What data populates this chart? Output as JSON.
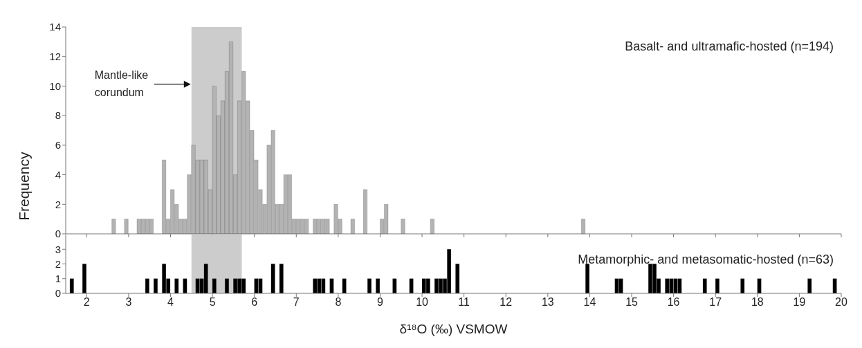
{
  "chart_data": [
    {
      "type": "histogram",
      "title": "Basalt- and ultramafic-hosted (n=194)",
      "ylabel": "Frequency",
      "color": "#b3b3b3",
      "bins": [
        2.6,
        2.7,
        2.8,
        2.9,
        3.0,
        3.1,
        3.2,
        3.3,
        3.4,
        3.5,
        3.6,
        3.7,
        3.8,
        3.9,
        4.0,
        4.1,
        4.2,
        4.3,
        4.4,
        4.5,
        4.6,
        4.7,
        4.8,
        4.9,
        5.0,
        5.1,
        5.2,
        5.3,
        5.4,
        5.5,
        5.6,
        5.7,
        5.8,
        5.9,
        6.0,
        6.1,
        6.2,
        6.3,
        6.4,
        6.5,
        6.6,
        6.7,
        6.8,
        6.9,
        7.0,
        7.1,
        7.2,
        7.3,
        7.4,
        7.5,
        7.6,
        7.7,
        7.8,
        7.9,
        8.0,
        8.1,
        8.2,
        8.3,
        8.4,
        8.5,
        8.6,
        8.7,
        8.8,
        8.9,
        9.0,
        9.1,
        9.2,
        9.3,
        9.4,
        9.5,
        9.6,
        9.7,
        9.8,
        9.9,
        10.0,
        10.1,
        10.2,
        10.3,
        10.4,
        10.5,
        10.6,
        10.7,
        10.8,
        10.9,
        11.0,
        11.1,
        11.2,
        11.3,
        11.4,
        11.5,
        11.6,
        11.7,
        11.8,
        11.9,
        12.0,
        12.1,
        12.2,
        12.3,
        12.4,
        12.5,
        12.6,
        12.7,
        12.8,
        12.9,
        13.0,
        13.1,
        13.2,
        13.3,
        13.4,
        13.5,
        13.6,
        13.7,
        13.8,
        13.9
      ],
      "values": [
        1,
        0,
        0,
        1,
        0,
        0,
        1,
        1,
        1,
        1,
        0,
        0,
        5,
        1,
        3,
        2,
        1,
        1,
        4,
        6,
        5,
        5,
        5,
        3,
        10,
        8,
        9,
        11,
        13,
        4,
        9,
        11,
        9,
        7,
        5,
        3,
        2,
        6,
        7,
        2,
        2,
        4,
        4,
        1,
        1,
        1,
        1,
        0,
        1,
        1,
        1,
        1,
        0,
        2,
        1,
        0,
        0,
        1,
        0,
        0,
        3,
        0,
        0,
        0,
        1,
        2,
        0,
        0,
        0,
        1,
        0,
        0,
        0,
        0,
        0,
        0,
        1,
        0,
        0,
        0,
        0,
        0,
        0,
        0,
        0,
        0,
        0,
        0,
        0,
        0,
        0,
        0,
        0,
        0,
        0,
        0,
        0,
        0,
        0,
        0,
        0,
        0,
        0,
        0,
        0,
        0,
        0,
        0,
        0,
        0,
        0,
        0,
        1
      ],
      "xlim": [
        1.5,
        20
      ],
      "xticks": [
        2,
        3,
        4,
        5,
        6,
        7,
        8,
        9,
        10,
        11,
        12,
        13,
        14,
        15,
        16,
        17,
        18,
        19,
        20
      ],
      "ylim": [
        0,
        14
      ],
      "yticks": [
        0,
        2,
        4,
        6,
        8,
        10,
        12,
        14
      ],
      "tick_labels": "y",
      "bands": [
        {
          "axis": "x",
          "from": 4.5,
          "to": 5.7,
          "label": "Mantle-like corundum",
          "color": "#cccccc"
        }
      ]
    },
    {
      "type": "histogram",
      "title": "Metamorphic- and metasomatic-hosted (n=63)",
      "xlabel": "δ¹⁸O (‰) VSMOW",
      "color": "#000000",
      "bins": [
        1.6,
        1.7,
        1.8,
        1.9,
        2.0,
        2.1,
        2.2,
        2.3,
        2.4,
        2.5,
        2.6,
        2.7,
        2.8,
        2.9,
        3.0,
        3.1,
        3.2,
        3.3,
        3.4,
        3.5,
        3.6,
        3.7,
        3.8,
        3.9,
        4.0,
        4.1,
        4.2,
        4.3,
        4.4,
        4.5,
        4.6,
        4.7,
        4.8,
        4.9,
        5.0,
        5.1,
        5.2,
        5.3,
        5.4,
        5.5,
        5.6,
        5.7,
        5.8,
        5.9,
        6.0,
        6.1,
        6.2,
        6.3,
        6.4,
        6.5,
        6.6,
        6.7,
        6.8,
        6.9,
        7.0,
        7.1,
        7.2,
        7.3,
        7.4,
        7.5,
        7.6,
        7.7,
        7.8,
        7.9,
        8.0,
        8.1,
        8.2,
        8.3,
        8.4,
        8.5,
        8.6,
        8.7,
        8.8,
        8.9,
        9.0,
        9.1,
        9.2,
        9.3,
        9.4,
        9.5,
        9.6,
        9.7,
        9.8,
        9.9,
        10.0,
        10.1,
        10.2,
        10.3,
        10.4,
        10.5,
        10.6,
        10.7,
        10.8,
        10.9,
        11.0,
        11.1,
        11.2,
        11.3,
        11.4,
        11.5,
        11.6,
        11.7,
        11.8,
        11.9,
        12.0,
        12.1,
        12.2,
        12.3,
        12.4,
        12.5,
        12.6,
        12.7,
        12.8,
        12.9,
        13.0,
        13.1,
        13.2,
        13.3,
        13.4,
        13.5,
        13.6,
        13.7,
        13.8,
        13.9,
        14.0,
        14.1,
        14.2,
        14.3,
        14.4,
        14.5,
        14.6,
        14.7,
        14.8,
        14.9,
        15.0,
        15.1,
        15.2,
        15.3,
        15.4,
        15.5,
        15.6,
        15.7,
        15.8,
        15.9,
        16.0,
        16.1,
        16.2,
        16.3,
        16.4,
        16.5,
        16.6,
        16.7,
        16.8,
        16.9,
        17.0,
        17.1,
        17.2,
        17.3,
        17.4,
        17.5,
        17.6,
        17.7,
        17.8,
        17.9,
        18.0,
        18.1,
        18.2,
        18.3,
        18.4,
        18.5,
        18.6,
        18.7,
        18.8,
        18.9,
        19.0,
        19.1,
        19.2,
        19.3,
        19.4,
        19.5,
        19.6,
        19.7,
        19.8,
        19.9,
        20.0
      ],
      "values": [
        1,
        0,
        0,
        2,
        0,
        0,
        0,
        0,
        0,
        0,
        0,
        0,
        0,
        0,
        0,
        0,
        0,
        0,
        1,
        0,
        1,
        0,
        2,
        1,
        0,
        1,
        0,
        1,
        0,
        0,
        1,
        1,
        2,
        0,
        1,
        0,
        0,
        1,
        0,
        1,
        1,
        1,
        0,
        0,
        1,
        1,
        0,
        0,
        2,
        0,
        2,
        0,
        0,
        0,
        0,
        0,
        0,
        0,
        1,
        1,
        1,
        0,
        1,
        0,
        0,
        1,
        0,
        0,
        0,
        0,
        0,
        1,
        0,
        1,
        0,
        0,
        0,
        1,
        0,
        0,
        0,
        1,
        0,
        0,
        1,
        1,
        0,
        1,
        1,
        1,
        3,
        0,
        2,
        0,
        0,
        0,
        0,
        0,
        0,
        0,
        0,
        0,
        0,
        0,
        0,
        0,
        0,
        0,
        0,
        0,
        0,
        0,
        0,
        0,
        0,
        0,
        0,
        0,
        0,
        0,
        0,
        0,
        0,
        2,
        0,
        0,
        0,
        0,
        0,
        0,
        1,
        1,
        0,
        0,
        0,
        0,
        0,
        0,
        2,
        2,
        1,
        0,
        1,
        1,
        1,
        1,
        0,
        0,
        0,
        0,
        0,
        1,
        0,
        0,
        1,
        0,
        0,
        0,
        0,
        0,
        1,
        0,
        0,
        0,
        1,
        0,
        0,
        0,
        0,
        0,
        0,
        0,
        0,
        0,
        0,
        0,
        1,
        0,
        0,
        0,
        0,
        0,
        1,
        0
      ],
      "xlim": [
        1.5,
        20
      ],
      "xticks": [
        2,
        3,
        4,
        5,
        6,
        7,
        8,
        9,
        10,
        11,
        12,
        13,
        14,
        15,
        16,
        17,
        18,
        19,
        20
      ],
      "ylim": [
        0,
        4
      ],
      "yticks": [
        0,
        1,
        2,
        3
      ],
      "bands": [
        {
          "axis": "x",
          "from": 4.5,
          "to": 5.7,
          "color": "#cccccc"
        }
      ]
    }
  ]
}
